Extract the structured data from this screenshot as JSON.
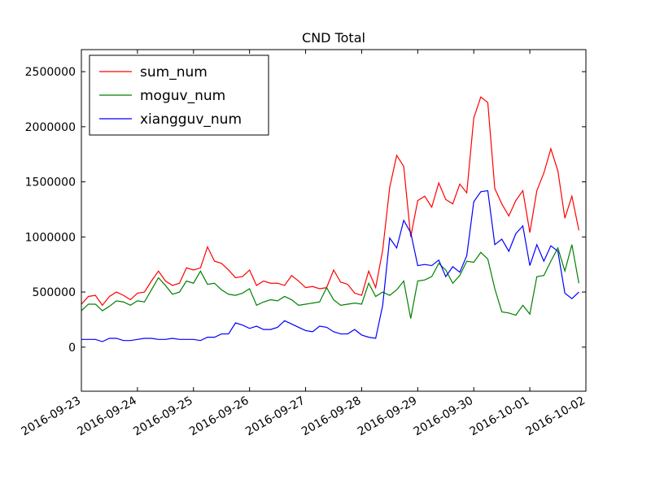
{
  "chart_data": {
    "type": "line",
    "title": "CND Total",
    "x": [
      "2016-09-23 00:00",
      "2016-09-23 03:00",
      "2016-09-23 06:00",
      "2016-09-23 09:00",
      "2016-09-23 12:00",
      "2016-09-23 15:00",
      "2016-09-23 18:00",
      "2016-09-23 21:00",
      "2016-09-24 00:00",
      "2016-09-24 03:00",
      "2016-09-24 06:00",
      "2016-09-24 09:00",
      "2016-09-24 12:00",
      "2016-09-24 15:00",
      "2016-09-24 18:00",
      "2016-09-24 21:00",
      "2016-09-25 00:00",
      "2016-09-25 03:00",
      "2016-09-25 06:00",
      "2016-09-25 09:00",
      "2016-09-25 12:00",
      "2016-09-25 15:00",
      "2016-09-25 18:00",
      "2016-09-25 21:00",
      "2016-09-26 00:00",
      "2016-09-26 03:00",
      "2016-09-26 06:00",
      "2016-09-26 09:00",
      "2016-09-26 12:00",
      "2016-09-26 15:00",
      "2016-09-26 18:00",
      "2016-09-26 21:00",
      "2016-09-27 00:00",
      "2016-09-27 03:00",
      "2016-09-27 06:00",
      "2016-09-27 09:00",
      "2016-09-27 12:00",
      "2016-09-27 15:00",
      "2016-09-27 18:00",
      "2016-09-27 21:00",
      "2016-09-28 00:00",
      "2016-09-28 03:00",
      "2016-09-28 06:00",
      "2016-09-28 09:00",
      "2016-09-28 12:00",
      "2016-09-28 15:00",
      "2016-09-28 18:00",
      "2016-09-28 21:00",
      "2016-09-29 00:00",
      "2016-09-29 03:00",
      "2016-09-29 06:00",
      "2016-09-29 09:00",
      "2016-09-29 12:00",
      "2016-09-29 15:00",
      "2016-09-29 18:00",
      "2016-09-29 21:00",
      "2016-09-30 00:00",
      "2016-09-30 03:00",
      "2016-09-30 06:00",
      "2016-09-30 09:00",
      "2016-09-30 12:00",
      "2016-09-30 15:00",
      "2016-09-30 18:00",
      "2016-09-30 21:00",
      "2016-10-01 00:00",
      "2016-10-01 03:00",
      "2016-10-01 06:00",
      "2016-10-01 09:00",
      "2016-10-01 12:00",
      "2016-10-01 15:00",
      "2016-10-01 18:00",
      "2016-10-01 21:00"
    ],
    "series": [
      {
        "name": "sum_num",
        "color": "#ff0000",
        "values": [
          390000,
          460000,
          470000,
          380000,
          460000,
          500000,
          470000,
          430000,
          490000,
          500000,
          600000,
          690000,
          600000,
          560000,
          580000,
          720000,
          700000,
          720000,
          910000,
          780000,
          760000,
          700000,
          630000,
          640000,
          700000,
          560000,
          600000,
          580000,
          580000,
          560000,
          650000,
          600000,
          540000,
          550000,
          530000,
          540000,
          700000,
          590000,
          570000,
          490000,
          470000,
          690000,
          540000,
          880000,
          1450000,
          1740000,
          1640000,
          1000000,
          1330000,
          1370000,
          1270000,
          1490000,
          1340000,
          1300000,
          1480000,
          1400000,
          2080000,
          2270000,
          2220000,
          1440000,
          1300000,
          1190000,
          1330000,
          1420000,
          1040000,
          1420000,
          1580000,
          1800000,
          1600000,
          1170000,
          1370000,
          1060000
        ]
      },
      {
        "name": "moguv_num",
        "color": "#008000",
        "values": [
          330000,
          390000,
          390000,
          330000,
          370000,
          420000,
          410000,
          380000,
          420000,
          410000,
          520000,
          630000,
          560000,
          480000,
          500000,
          600000,
          580000,
          690000,
          570000,
          580000,
          520000,
          480000,
          470000,
          490000,
          530000,
          380000,
          410000,
          430000,
          420000,
          460000,
          430000,
          380000,
          390000,
          400000,
          410000,
          540000,
          430000,
          380000,
          390000,
          400000,
          390000,
          580000,
          460000,
          500000,
          470000,
          520000,
          600000,
          260000,
          600000,
          610000,
          640000,
          760000,
          700000,
          580000,
          650000,
          780000,
          770000,
          860000,
          800000,
          530000,
          320000,
          310000,
          290000,
          380000,
          300000,
          640000,
          650000,
          780000,
          900000,
          690000,
          930000,
          580000
        ]
      },
      {
        "name": "xiangguv_num",
        "color": "#0000ff",
        "values": [
          70000,
          70000,
          70000,
          50000,
          80000,
          80000,
          60000,
          60000,
          70000,
          80000,
          80000,
          70000,
          70000,
          80000,
          70000,
          70000,
          70000,
          60000,
          90000,
          90000,
          120000,
          120000,
          220000,
          200000,
          170000,
          190000,
          160000,
          160000,
          180000,
          240000,
          210000,
          180000,
          150000,
          140000,
          190000,
          180000,
          140000,
          120000,
          120000,
          160000,
          110000,
          90000,
          80000,
          380000,
          990000,
          900000,
          1150000,
          1040000,
          740000,
          750000,
          740000,
          790000,
          640000,
          730000,
          680000,
          830000,
          1320000,
          1410000,
          1420000,
          930000,
          980000,
          870000,
          1030000,
          1100000,
          740000,
          930000,
          780000,
          920000,
          870000,
          490000,
          440000,
          500000
        ]
      }
    ],
    "xlim": [
      "2016-09-23",
      "2016-10-02"
    ],
    "xticks": [
      "2016-09-23",
      "2016-09-24",
      "2016-09-25",
      "2016-09-26",
      "2016-09-27",
      "2016-09-28",
      "2016-09-29",
      "2016-09-30",
      "2016-10-01",
      "2016-10-02"
    ],
    "ylim": [
      -400000,
      2700000
    ],
    "yticks": [
      0,
      500000,
      1000000,
      1500000,
      2000000,
      2500000
    ],
    "legend": "upper left"
  }
}
